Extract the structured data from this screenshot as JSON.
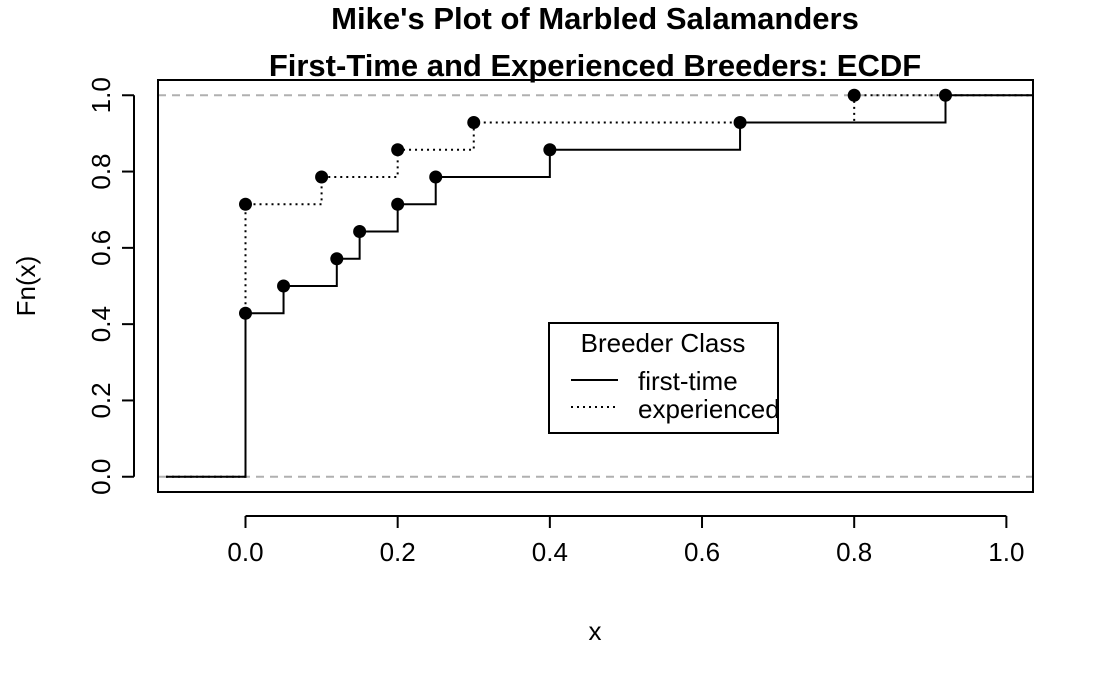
{
  "chart_data": {
    "type": "step",
    "title": "Mike's Plot of Marbled Salamanders",
    "subtitle": "First-Time and Experienced Breeders: ECDF",
    "xlabel": "x",
    "ylabel": "Fn(x)",
    "xlim": [
      -0.115,
      1.035
    ],
    "ylim": [
      -0.04,
      1.04
    ],
    "x_ticks": [
      0.0,
      0.2,
      0.4,
      0.6,
      0.8,
      1.0
    ],
    "x_tick_labels": [
      "0.0",
      "0.2",
      "0.4",
      "0.6",
      "0.8",
      "1.0"
    ],
    "y_ticks": [
      0.0,
      0.2,
      0.4,
      0.6,
      0.8,
      1.0
    ],
    "y_tick_labels": [
      "0.0",
      "0.2",
      "0.4",
      "0.6",
      "0.8",
      "1.0"
    ],
    "reference_lines_y": [
      0,
      1
    ],
    "legend": {
      "title": "Breeder Class",
      "position": "center-right"
    },
    "series": [
      {
        "name": "first-time",
        "line_style": "solid",
        "x": [
          0.0,
          0.05,
          0.12,
          0.15,
          0.2,
          0.25,
          0.4,
          0.65,
          0.92
        ],
        "y": [
          0.4286,
          0.5,
          0.5714,
          0.6429,
          0.7143,
          0.7857,
          0.8571,
          0.9286,
          1.0
        ]
      },
      {
        "name": "experienced",
        "line_style": "dotted",
        "x": [
          0.0,
          0.1,
          0.2,
          0.3,
          0.8
        ],
        "y": [
          0.7143,
          0.7857,
          0.8571,
          0.9286,
          1.0
        ]
      }
    ]
  }
}
